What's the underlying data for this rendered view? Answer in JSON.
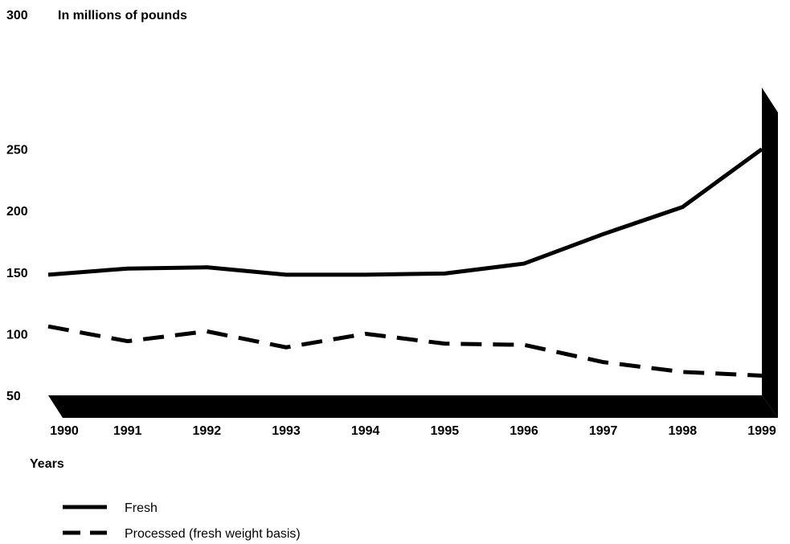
{
  "chart_data": {
    "type": "line",
    "ylabel": "In millions of pounds",
    "xlabel": "Years",
    "x": [
      "1990",
      "1991",
      "1992",
      "1993",
      "1994",
      "1995",
      "1996",
      "1997",
      "1998",
      "1999"
    ],
    "y_ticks": [
      "300",
      "250",
      "200",
      "150",
      "100",
      "50"
    ],
    "ylim": [
      50,
      300
    ],
    "grid": false,
    "legend_position": "bottom-left",
    "series": [
      {
        "name": "Fresh",
        "style": "solid",
        "values": [
          148,
          153,
          154,
          148,
          148,
          149,
          157,
          181,
          203,
          250
        ]
      },
      {
        "name": "Processed (fresh weight basis)",
        "style": "dashed",
        "values": [
          106,
          94,
          102,
          89,
          100,
          92,
          91,
          77,
          69,
          66
        ]
      }
    ],
    "colors": {
      "line": "#000000",
      "axis": "#000000"
    }
  }
}
